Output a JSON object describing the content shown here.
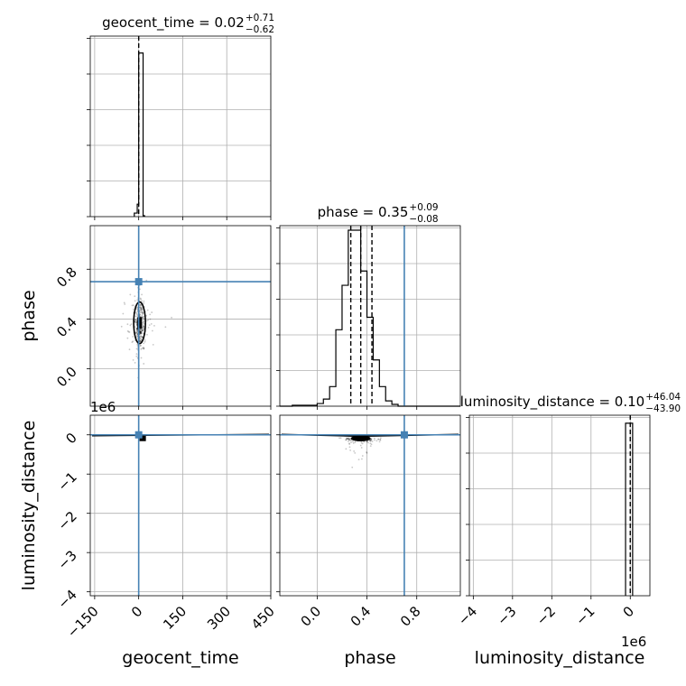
{
  "chart_data": {
    "type": "corner",
    "parameters": [
      "geocent_time",
      "phase",
      "luminosity_distance"
    ],
    "truth_color": "#4682b4",
    "truths": {
      "geocent_time": 0,
      "phase": 0.7,
      "luminosity_distance": 0
    },
    "titles": [
      {
        "param": "geocent_time",
        "base": "geocent_time = 0.02",
        "plus": "+0.71",
        "minus": "−0.62"
      },
      {
        "param": "phase",
        "base": "phase = 0.35",
        "plus": "+0.09",
        "minus": "−0.08"
      },
      {
        "param": "luminosity_distance",
        "base": "luminosity_distance = 0.10",
        "plus": "+46.04",
        "minus": "−43.90"
      }
    ],
    "xlabels": [
      "geocent_time",
      "phase",
      "luminosity_distance"
    ],
    "ylabels": [
      "phase",
      "luminosity_distance"
    ],
    "offset_text": "1e6",
    "axes": {
      "geocent_time": {
        "range": [
          -165,
          450
        ],
        "ticks": [
          -150,
          0,
          150,
          300,
          450
        ],
        "ticklabels": [
          "−150",
          "0",
          "150",
          "300",
          "450"
        ]
      },
      "phase": {
        "range": [
          -0.3,
          1.15
        ],
        "ticks": [
          0.0,
          0.4,
          0.8
        ],
        "ticklabels": [
          "0.0",
          "0.4",
          "0.8"
        ]
      },
      "luminosity_distance": {
        "range": [
          -4.1,
          0.5
        ],
        "ticks": [
          -4,
          -3,
          -2,
          -1,
          0
        ],
        "ticklabels": [
          "−4",
          "−3",
          "−2",
          "−1",
          "0"
        ]
      }
    },
    "hist_1d": {
      "geocent_time": {
        "edges": [
          -15,
          -5,
          0,
          10,
          15,
          20
        ],
        "counts": [
          0.02,
          0.07,
          0.92,
          0.92,
          0.005
        ]
      },
      "phase": {
        "edges": [
          -0.3,
          -0.2,
          -0.1,
          0.0,
          0.05,
          0.1,
          0.15,
          0.2,
          0.25,
          0.3,
          0.35,
          0.4,
          0.45,
          0.5,
          0.55,
          0.6,
          0.65,
          1.15
        ],
        "counts": [
          0,
          0.005,
          0.005,
          0.015,
          0.04,
          0.11,
          0.43,
          0.68,
          0.99,
          0.99,
          0.76,
          0.5,
          0.26,
          0.11,
          0.03,
          0.01,
          0
        ]
      },
      "luminosity_distance": {
        "edges": [
          -0.12,
          -0.05,
          0.0,
          0.06
        ],
        "counts": [
          0.97,
          0.97,
          0.97
        ]
      }
    },
    "quantile_lines": {
      "geocent_time": [
        0.02
      ],
      "phase": [
        0.27,
        0.35,
        0.44
      ],
      "luminosity_distance": [
        0.0
      ]
    }
  }
}
